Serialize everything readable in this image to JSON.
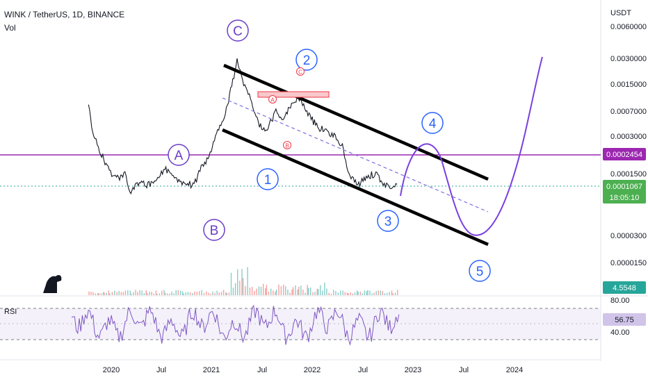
{
  "header": {
    "symbol_line": "WINK / TetherUS, 1D, BINANCE",
    "volume_label": "Vol"
  },
  "axis": {
    "currency": "USDT",
    "price_ticks": [
      "0.0060000",
      "0.0030000",
      "0.0015000",
      "0.0007000",
      "0.0003000",
      "0.0001500",
      "0.0000300",
      "0.0000150"
    ],
    "x_ticks": [
      "2020",
      "Jul",
      "2021",
      "Jul",
      "2022",
      "Jul",
      "2023",
      "Jul",
      "2024"
    ]
  },
  "badges": {
    "horizontal_level": "0.0002454",
    "last_price": "0.0001067",
    "countdown": "18:05:10",
    "volume_value": "4.5548",
    "rsi_value": "56.75"
  },
  "rsi": {
    "label": "RSI",
    "upper_band": "80.00",
    "lower_band": "40.00"
  },
  "annotations": {
    "wave_A": "A",
    "wave_B": "B",
    "wave_C": "C",
    "wave_1": "1",
    "wave_2": "2",
    "wave_3": "3",
    "wave_4": "4",
    "wave_5": "5",
    "sub_A": "A",
    "sub_B": "B",
    "sub_C": "C"
  },
  "colors": {
    "candles": "#131722",
    "channel": "#000000",
    "midline": "#7b6ee0",
    "projection": "#7a3fe0",
    "horizontal_line": "#9c27b0",
    "last_price_line": "#26a69a",
    "wave_abc": "#6a3cc8",
    "wave_numbers": "#2962ff",
    "sub_markers": "#f23645",
    "rsi_line": "#7e57c2",
    "rsi_band_fill": "#ede7f6"
  },
  "chart_data": {
    "type": "line",
    "title": "WINK / TetherUS, 1D, BINANCE",
    "y_scale": "log",
    "y_unit": "USDT",
    "x_range": [
      "2019-09",
      "2024-03"
    ],
    "price_path": [
      [
        "2019-10-10",
        0.0009
      ],
      [
        "2019-10-25",
        0.00045
      ],
      [
        "2019-11-15",
        0.0003
      ],
      [
        "2019-12-05",
        0.00022
      ],
      [
        "2019-12-25",
        0.00016
      ],
      [
        "2020-01-20",
        0.00013
      ],
      [
        "2020-02-20",
        0.00015
      ],
      [
        "2020-03-13",
        9e-05
      ],
      [
        "2020-04-05",
        0.00012
      ],
      [
        "2020-05-10",
        0.00011
      ],
      [
        "2020-06-15",
        0.00012
      ],
      [
        "2020-07-15",
        0.00017
      ],
      [
        "2020-08-15",
        0.00014
      ],
      [
        "2020-09-20",
        0.00012
      ],
      [
        "2020-10-30",
        0.00011
      ],
      [
        "2020-11-25",
        0.00018
      ],
      [
        "2020-12-20",
        0.00022
      ],
      [
        "2021-01-20",
        0.0004
      ],
      [
        "2021-02-25",
        0.0008
      ],
      [
        "2021-04-05",
        0.0028
      ],
      [
        "2021-04-25",
        0.0017
      ],
      [
        "2021-05-20",
        0.0011
      ],
      [
        "2021-06-22",
        0.00055
      ],
      [
        "2021-07-20",
        0.00045
      ],
      [
        "2021-08-25",
        0.00075
      ],
      [
        "2021-09-20",
        0.0006
      ],
      [
        "2021-10-25",
        0.00095
      ],
      [
        "2021-11-15",
        0.0011
      ],
      [
        "2021-12-20",
        0.0007
      ],
      [
        "2022-01-25",
        0.0005
      ],
      [
        "2022-02-25",
        0.00045
      ],
      [
        "2022-03-30",
        0.0004
      ],
      [
        "2022-04-25",
        0.0003
      ],
      [
        "2022-05-15",
        0.00015
      ],
      [
        "2022-06-20",
        0.00011
      ],
      [
        "2022-07-25",
        0.00014
      ],
      [
        "2022-08-25",
        0.00015
      ],
      [
        "2022-09-25",
        0.00011
      ],
      [
        "2022-10-25",
        0.0001
      ],
      [
        "2022-11-15",
        0.00011
      ]
    ],
    "projection_path": [
      [
        "2022-11-15",
        0.0001
      ],
      [
        "2022-12-25",
        0.0002
      ],
      [
        "2023-02-05",
        0.00022
      ],
      [
        "2023-03-15",
        0.00013
      ],
      [
        "2023-04-30",
        5e-05
      ],
      [
        "2023-06-05",
        3.4e-05
      ],
      [
        "2023-07-15",
        6e-05
      ],
      [
        "2023-09-15",
        0.0003
      ],
      [
        "2023-11-20",
        0.0015
      ],
      [
        "2024-01-25",
        0.0045
      ]
    ],
    "levels": {
      "horizontal": 0.0002454,
      "last_price": 0.0001067
    },
    "channel": {
      "upper": [
        [
          "2021-03-01",
          0.0045
        ],
        [
          "2023-06-15",
          0.00015
        ]
      ],
      "lower": [
        [
          "2021-03-01",
          0.00065
        ],
        [
          "2023-06-15",
          2.7e-05
        ]
      ],
      "mid": [
        [
          "2021-03-01",
          0.0016
        ],
        [
          "2023-06-15",
          6.5e-05
        ]
      ]
    },
    "rsi": {
      "upper_band": 80,
      "lower_band": 40,
      "last": 56.75
    },
    "grid": false,
    "legend": "none"
  }
}
